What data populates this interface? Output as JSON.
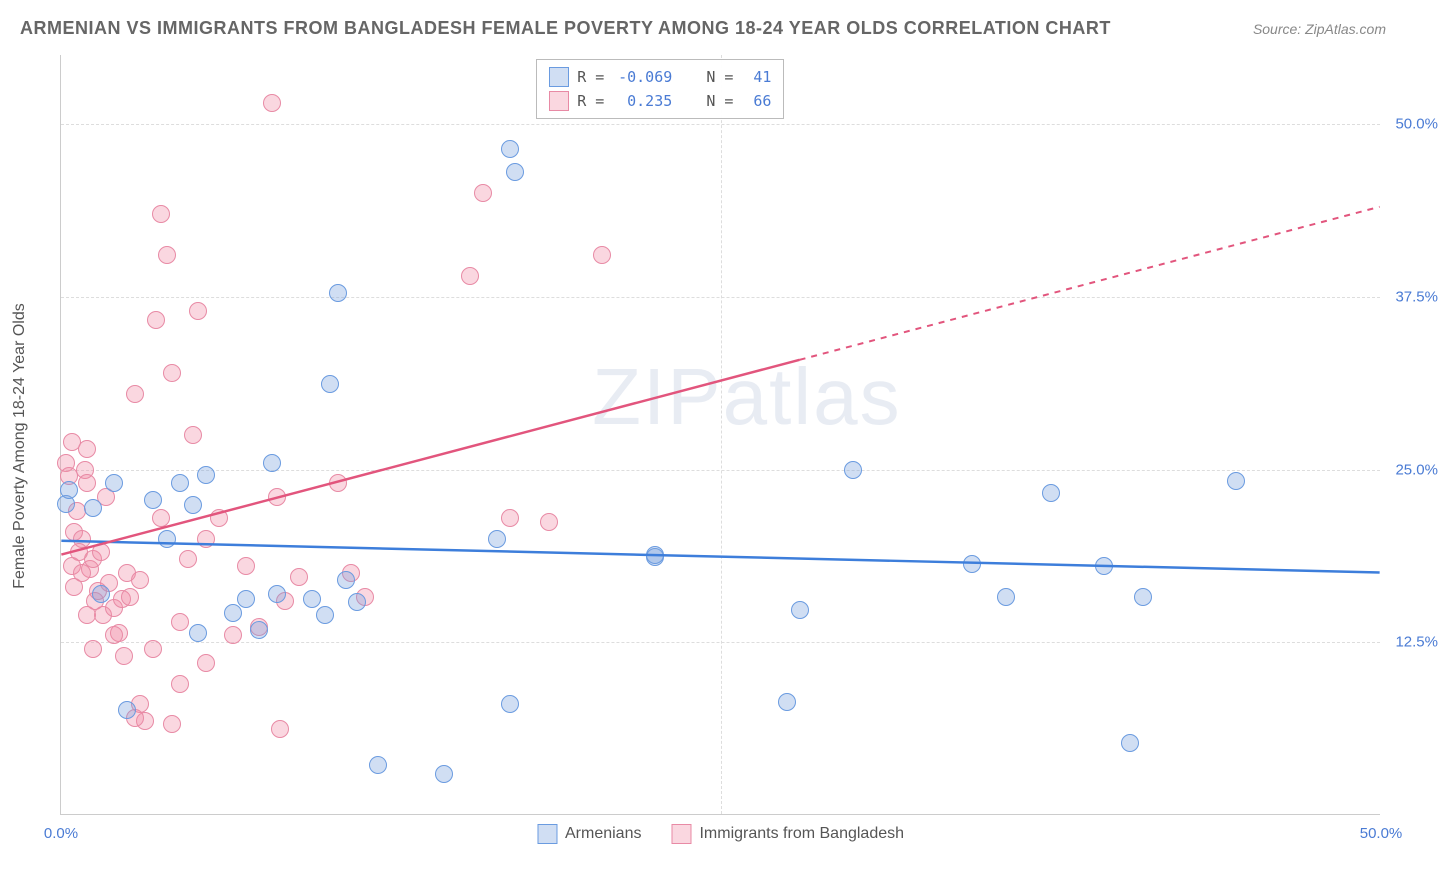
{
  "title": "ARMENIAN VS IMMIGRANTS FROM BANGLADESH FEMALE POVERTY AMONG 18-24 YEAR OLDS CORRELATION CHART",
  "source_label": "Source: ZipAtlas.com",
  "y_axis_label": "Female Poverty Among 18-24 Year Olds",
  "watermark": "ZIPatlas",
  "chart": {
    "type": "scatter",
    "xlim": [
      0,
      50
    ],
    "ylim": [
      0,
      55
    ],
    "x_ticks": [
      {
        "value": 0,
        "label": "0.0%"
      },
      {
        "value": 50,
        "label": "50.0%"
      }
    ],
    "y_ticks": [
      {
        "value": 12.5,
        "label": "12.5%"
      },
      {
        "value": 25,
        "label": "25.0%"
      },
      {
        "value": 37.5,
        "label": "37.5%"
      },
      {
        "value": 50,
        "label": "50.0%"
      }
    ],
    "x_grid_at": [
      25
    ],
    "background_color": "#ffffff",
    "grid_color": "#dddddd",
    "tick_color": "#4a7bd4",
    "series": [
      {
        "name": "Armenians",
        "fill": "rgba(120,160,220,0.35)",
        "stroke": "#6a9be0",
        "marker_radius": 9,
        "r_value": "-0.069",
        "n_value": "41",
        "trend": {
          "x1": 0,
          "y1": 19.8,
          "x2": 50,
          "y2": 17.5,
          "color": "#3d7edb",
          "dash_from_x": null
        },
        "points": [
          [
            0.2,
            22.5
          ],
          [
            0.3,
            23.5
          ],
          [
            1.2,
            22.2
          ],
          [
            1.5,
            16.0
          ],
          [
            2.0,
            24.0
          ],
          [
            2.5,
            7.6
          ],
          [
            3.5,
            22.8
          ],
          [
            4.0,
            20.0
          ],
          [
            4.5,
            24.0
          ],
          [
            5.0,
            22.4
          ],
          [
            5.2,
            13.2
          ],
          [
            5.5,
            24.6
          ],
          [
            6.5,
            14.6
          ],
          [
            7.0,
            15.6
          ],
          [
            7.5,
            13.4
          ],
          [
            8.0,
            25.5
          ],
          [
            8.2,
            16.0
          ],
          [
            9.5,
            15.6
          ],
          [
            10.0,
            14.5
          ],
          [
            10.2,
            31.2
          ],
          [
            10.5,
            37.8
          ],
          [
            10.8,
            17.0
          ],
          [
            11.2,
            15.4
          ],
          [
            12.0,
            3.6
          ],
          [
            14.5,
            3.0
          ],
          [
            16.5,
            20.0
          ],
          [
            17.0,
            8.0
          ],
          [
            17.2,
            46.5
          ],
          [
            22.5,
            18.7
          ],
          [
            27.5,
            8.2
          ],
          [
            28.0,
            14.8
          ],
          [
            30.0,
            25.0
          ],
          [
            34.5,
            18.2
          ],
          [
            35.8,
            15.8
          ],
          [
            37.5,
            23.3
          ],
          [
            39.5,
            18.0
          ],
          [
            41.0,
            15.8
          ],
          [
            40.5,
            5.2
          ],
          [
            44.5,
            24.2
          ],
          [
            17.0,
            48.2
          ],
          [
            22.5,
            18.8
          ]
        ]
      },
      {
        "name": "Immigrants from Bangladesh",
        "fill": "rgba(240,140,165,0.35)",
        "stroke": "#e88aa5",
        "marker_radius": 9,
        "r_value": "0.235",
        "n_value": "66",
        "trend": {
          "x1": 0,
          "y1": 18.8,
          "x2": 50,
          "y2": 44.0,
          "color": "#e2557d",
          "dash_from_x": 28
        },
        "points": [
          [
            0.2,
            25.5
          ],
          [
            0.4,
            27.0
          ],
          [
            0.5,
            20.5
          ],
          [
            0.6,
            22.0
          ],
          [
            0.8,
            20.0
          ],
          [
            0.9,
            25.0
          ],
          [
            1.0,
            26.5
          ],
          [
            1.1,
            17.8
          ],
          [
            1.2,
            18.5
          ],
          [
            1.3,
            15.5
          ],
          [
            1.4,
            16.2
          ],
          [
            1.5,
            19.0
          ],
          [
            1.6,
            14.5
          ],
          [
            1.7,
            23.0
          ],
          [
            1.8,
            16.8
          ],
          [
            2.0,
            15.0
          ],
          [
            2.2,
            13.2
          ],
          [
            2.3,
            15.6
          ],
          [
            2.4,
            11.5
          ],
          [
            2.5,
            17.5
          ],
          [
            2.6,
            15.8
          ],
          [
            2.8,
            30.5
          ],
          [
            3.0,
            8.0
          ],
          [
            3.2,
            6.8
          ],
          [
            3.5,
            12.0
          ],
          [
            3.6,
            35.8
          ],
          [
            3.8,
            43.5
          ],
          [
            4.0,
            40.5
          ],
          [
            4.2,
            32.0
          ],
          [
            4.5,
            14.0
          ],
          [
            4.8,
            18.5
          ],
          [
            5.0,
            27.5
          ],
          [
            5.2,
            36.5
          ],
          [
            5.5,
            11.0
          ],
          [
            6.0,
            21.5
          ],
          [
            6.5,
            13.0
          ],
          [
            7.0,
            18.0
          ],
          [
            7.5,
            13.6
          ],
          [
            8.0,
            51.5
          ],
          [
            8.2,
            23.0
          ],
          [
            8.5,
            15.5
          ],
          [
            9.0,
            17.2
          ],
          [
            10.5,
            24.0
          ],
          [
            11.0,
            17.5
          ],
          [
            11.5,
            15.8
          ],
          [
            15.5,
            39.0
          ],
          [
            16.0,
            45.0
          ],
          [
            17.0,
            21.5
          ],
          [
            18.5,
            21.2
          ],
          [
            20.5,
            40.5
          ],
          [
            2.8,
            7.0
          ],
          [
            4.2,
            6.6
          ],
          [
            1.0,
            24.0
          ],
          [
            0.3,
            24.5
          ],
          [
            0.7,
            19.0
          ],
          [
            1.0,
            14.5
          ],
          [
            1.2,
            12.0
          ],
          [
            2.0,
            13.0
          ],
          [
            3.0,
            17.0
          ],
          [
            3.8,
            21.5
          ],
          [
            4.5,
            9.5
          ],
          [
            5.5,
            20.0
          ],
          [
            8.3,
            6.2
          ],
          [
            0.4,
            18.0
          ],
          [
            0.5,
            16.5
          ],
          [
            0.8,
            17.5
          ]
        ]
      }
    ],
    "legend_stats": {
      "r_label": "R =",
      "n_label": "N =",
      "value_color": "#4a7bd4",
      "label_color": "#555555"
    }
  }
}
